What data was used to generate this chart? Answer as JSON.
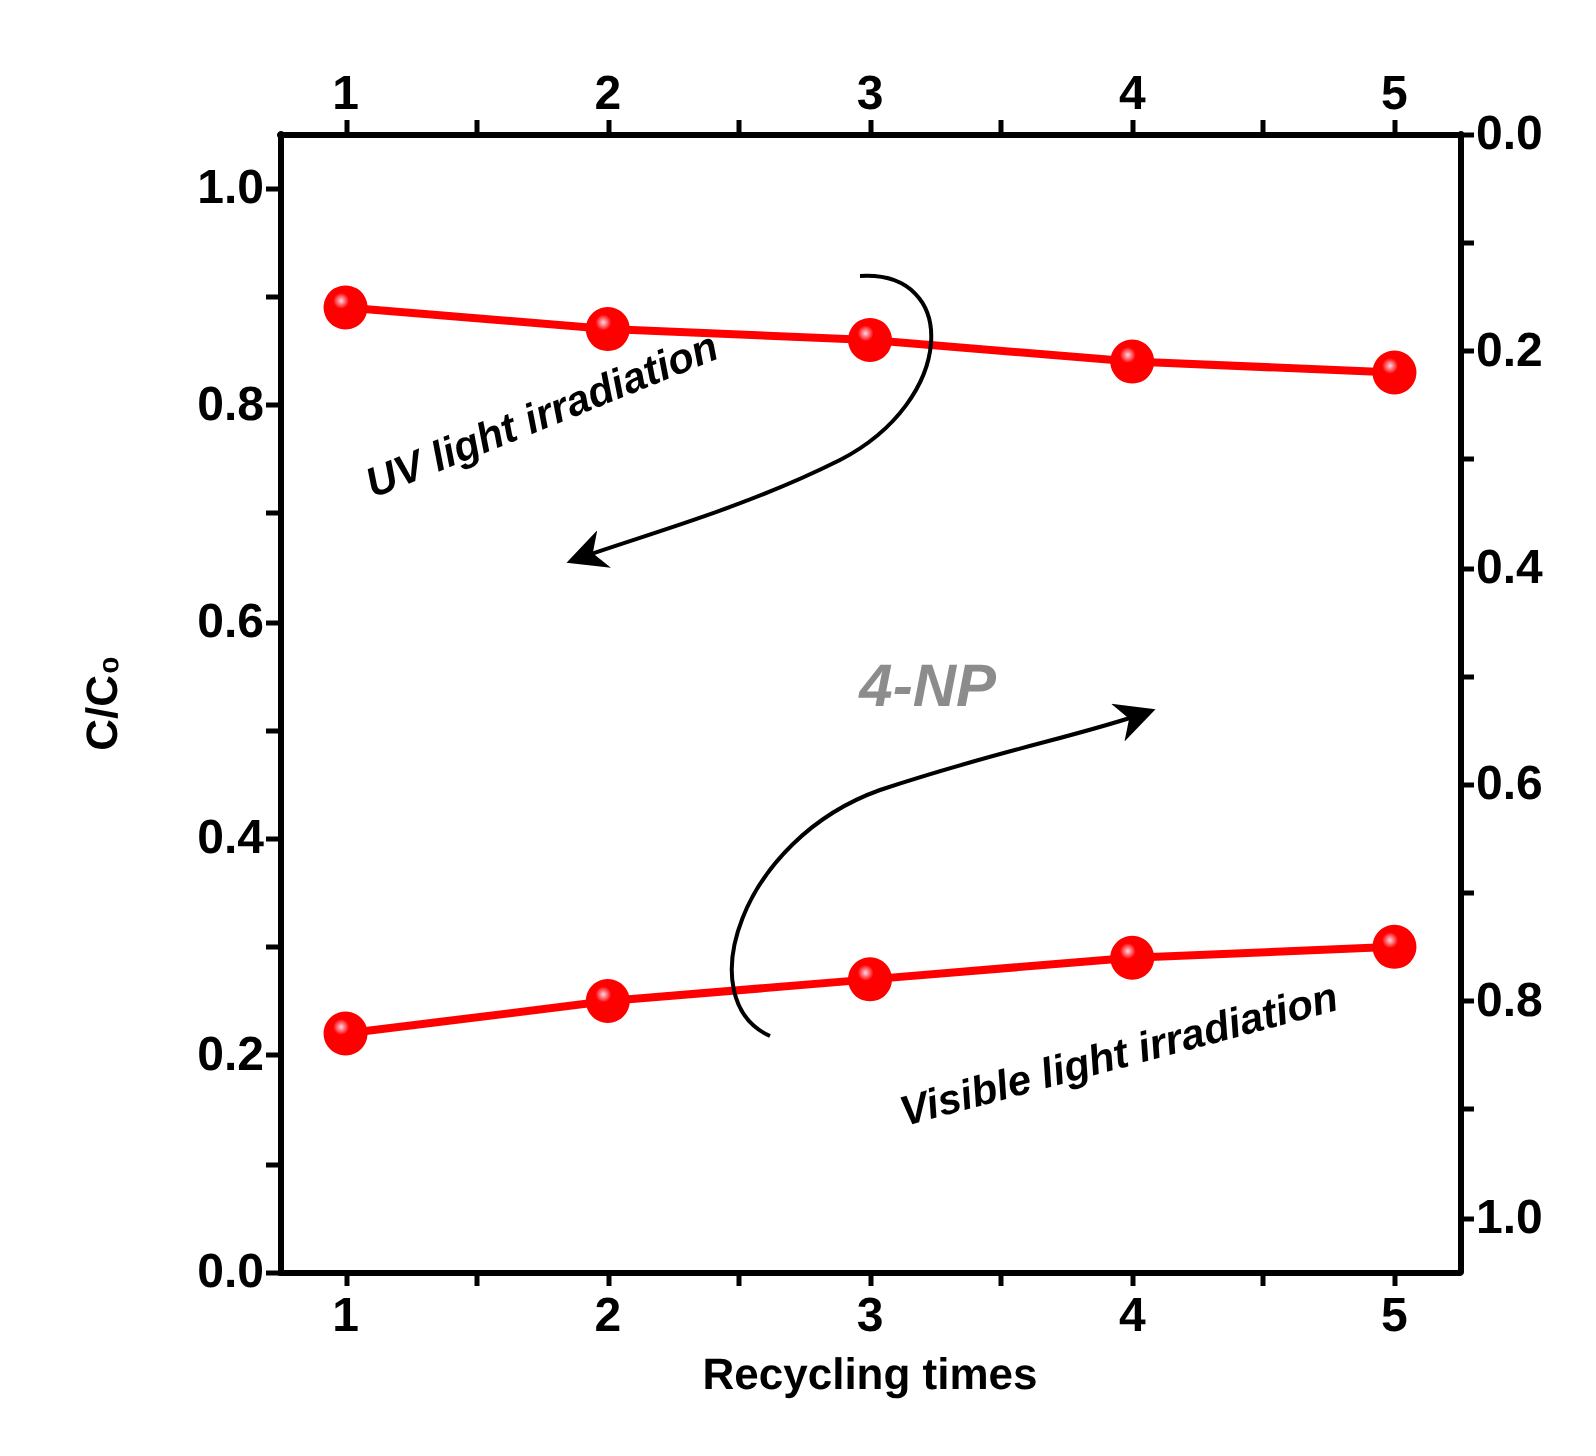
{
  "chart_data": {
    "type": "line",
    "xlabel": "Recycling times",
    "ylabel": "C/C₀",
    "x": [
      1,
      2,
      3,
      4,
      5
    ],
    "series": [
      {
        "color": "#ff0000",
        "values": [
          0.89,
          0.87,
          0.86,
          0.84,
          0.83
        ],
        "axis": "y"
      },
      {
        "color": "#ff0000",
        "values": [
          0.83,
          0.8,
          0.78,
          0.76,
          0.75
        ],
        "axis": "y2"
      }
    ],
    "xlim": [
      0.75,
      5.25
    ],
    "xticks": [
      1,
      {
        "value": 1.5,
        "label": null
      },
      2,
      {
        "value": 2.5,
        "label": null
      },
      3,
      {
        "value": 3.5,
        "label": null
      },
      4,
      {
        "value": 4.5,
        "label": null
      },
      5
    ],
    "x2lim": [
      0.75,
      5.25
    ],
    "x2ticks": [
      1,
      {
        "value": 1.5,
        "label": null
      },
      2,
      {
        "value": 2.5,
        "label": null
      },
      3,
      {
        "value": 3.5,
        "label": null
      },
      4,
      {
        "value": 4.5,
        "label": null
      },
      5
    ],
    "ylim": [
      0,
      1.05
    ],
    "yticks": [
      {
        "value": 0,
        "label": "0.0"
      },
      {
        "value": 0.1,
        "label": null
      },
      0.2,
      {
        "value": 0.3,
        "label": null
      },
      0.4,
      {
        "value": 0.5,
        "label": null
      },
      0.6,
      {
        "value": 0.7,
        "label": null
      },
      0.8,
      {
        "value": 0.9,
        "label": null
      },
      {
        "value": 1,
        "label": "1.0"
      }
    ],
    "y2lim": [
      1.05,
      0
    ],
    "y2ticks": [
      {
        "value": 0,
        "label": "0.0"
      },
      {
        "value": 0.1,
        "label": null
      },
      0.2,
      {
        "value": 0.3,
        "label": null
      },
      0.4,
      {
        "value": 0.5,
        "label": null
      },
      0.6,
      {
        "value": 0.7,
        "label": null
      },
      0.8,
      {
        "value": 0.9,
        "label": null
      },
      {
        "value": 1,
        "label": "1.0"
      }
    ],
    "marker": "circle",
    "line_style": "solid",
    "annotations": [
      "UV light irradiation",
      "4-NP",
      "Visible light irradiation"
    ]
  }
}
